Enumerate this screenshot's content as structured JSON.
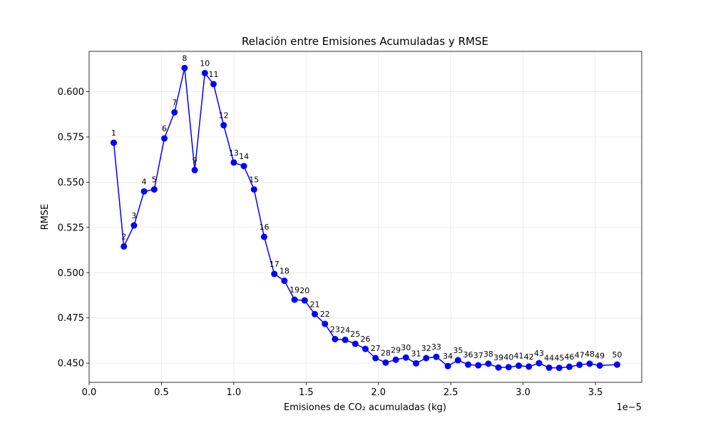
{
  "chart_data": {
    "type": "line",
    "title": "Relación entre Emisiones Acumuladas y RMSE",
    "xlabel": "Emisiones de CO₂ acumuladas (kg)",
    "ylabel": "RMSE",
    "x_scale_label": "1e−5",
    "xlim": [
      0.0,
      3.82
    ],
    "ylim": [
      0.4394,
      0.6223
    ],
    "x_ticks": [
      0.0,
      0.5,
      1.0,
      1.5,
      2.0,
      2.5,
      3.0,
      3.5
    ],
    "x_tick_labels": [
      "0.0",
      "0.5",
      "1.0",
      "1.5",
      "2.0",
      "2.5",
      "3.0",
      "3.5"
    ],
    "y_ticks": [
      0.45,
      0.475,
      0.5,
      0.525,
      0.55,
      0.575,
      0.6
    ],
    "y_tick_labels": [
      "0.450",
      "0.475",
      "0.500",
      "0.525",
      "0.550",
      "0.575",
      "0.600"
    ],
    "grid": true,
    "color": "#0000ff",
    "marker": "circle",
    "series": [
      {
        "labels": [
          "1",
          "2",
          "3",
          "4",
          "5",
          "6",
          "7",
          "8",
          "9",
          "10",
          "11",
          "12",
          "13",
          "14",
          "15",
          "16",
          "17",
          "18",
          "19",
          "20",
          "21",
          "22",
          "23",
          "24",
          "25",
          "26",
          "27",
          "28",
          "29",
          "30",
          "31",
          "32",
          "33",
          "34",
          "35",
          "36",
          "37",
          "38",
          "39",
          "40",
          "41",
          "42",
          "43",
          "44",
          "45",
          "46",
          "47",
          "48",
          "49",
          "50"
        ],
        "x": [
          0.17,
          0.24,
          0.31,
          0.38,
          0.45,
          0.52,
          0.59,
          0.66,
          0.73,
          0.8,
          0.86,
          0.93,
          1.0,
          1.07,
          1.14,
          1.21,
          1.28,
          1.35,
          1.42,
          1.49,
          1.56,
          1.63,
          1.7,
          1.77,
          1.84,
          1.91,
          1.98,
          2.05,
          2.12,
          2.19,
          2.26,
          2.33,
          2.4,
          2.48,
          2.55,
          2.62,
          2.69,
          2.76,
          2.83,
          2.9,
          2.97,
          3.04,
          3.11,
          3.18,
          3.25,
          3.32,
          3.39,
          3.46,
          3.53,
          3.65
        ],
        "y": [
          0.5718,
          0.5145,
          0.5261,
          0.5449,
          0.546,
          0.5742,
          0.5886,
          0.6131,
          0.5567,
          0.6103,
          0.6042,
          0.5815,
          0.5609,
          0.5589,
          0.546,
          0.5198,
          0.4993,
          0.4955,
          0.4851,
          0.4847,
          0.4771,
          0.4717,
          0.4633,
          0.4629,
          0.4607,
          0.4579,
          0.4528,
          0.4503,
          0.4519,
          0.4531,
          0.4499,
          0.4528,
          0.4535,
          0.4484,
          0.4516,
          0.4492,
          0.4488,
          0.4497,
          0.4476,
          0.4478,
          0.4486,
          0.4481,
          0.45,
          0.4475,
          0.4474,
          0.448,
          0.4491,
          0.4497,
          0.4487,
          0.4492
        ]
      }
    ]
  }
}
